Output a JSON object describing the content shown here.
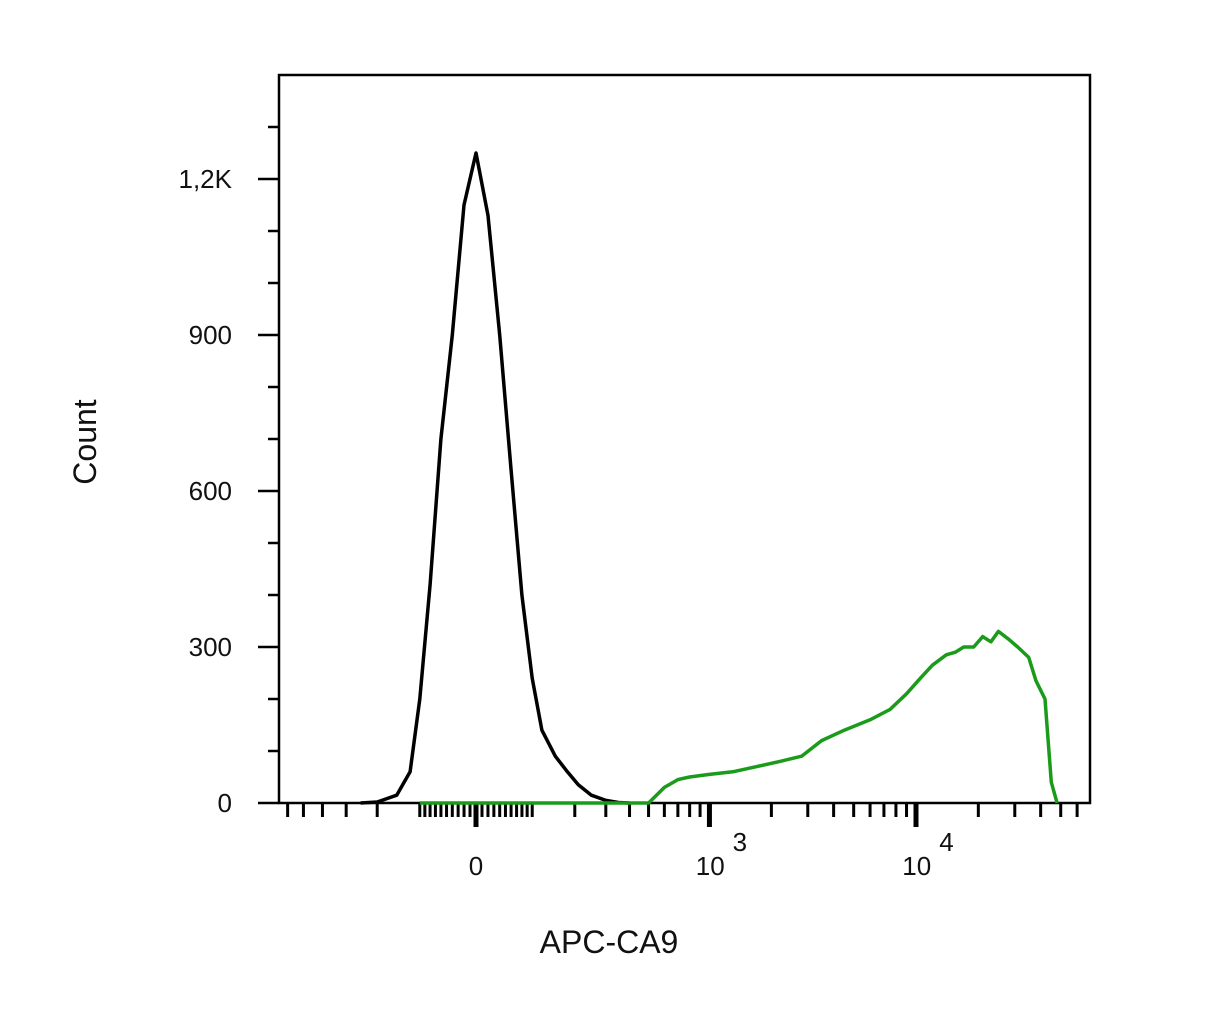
{
  "chart_data": {
    "type": "line",
    "title": "",
    "xlabel": "APC-CA9",
    "ylabel": "Count",
    "x_scale": "biexponential",
    "x_tick_labels": [
      {
        "base": "0",
        "exp": ""
      },
      {
        "base": "10",
        "exp": "3"
      },
      {
        "base": "10",
        "exp": "4"
      }
    ],
    "y_ticks": [
      0,
      300,
      600,
      900,
      1200
    ],
    "y_tick_labels": [
      "0",
      "300",
      "600",
      "900",
      "1,2K"
    ],
    "ylim": [
      0,
      1400
    ],
    "grid": false,
    "legend": "none",
    "series": [
      {
        "color": "#000000",
        "x": [
          -250,
          -200,
          -150,
          -120,
          -100,
          -80,
          -60,
          -40,
          -20,
          0,
          20,
          40,
          60,
          80,
          100,
          120,
          150,
          180,
          210,
          250,
          300,
          350,
          400
        ],
        "values": [
          0,
          2,
          15,
          60,
          200,
          420,
          700,
          900,
          1150,
          1250,
          1130,
          900,
          640,
          400,
          240,
          140,
          90,
          60,
          35,
          15,
          5,
          1,
          0
        ]
      },
      {
        "color": "#1a9b1a",
        "x": [
          -100,
          0,
          300,
          500,
          600,
          700,
          800,
          1000,
          1300,
          1700,
          2200,
          2800,
          3500,
          4500,
          6000,
          7500,
          9000,
          10500,
          12000,
          14000,
          15500,
          17000,
          19000,
          21000,
          23000,
          25000,
          28000,
          31000,
          35000,
          38000,
          42000,
          45000,
          48000
        ],
        "values": [
          0,
          0,
          0,
          0,
          30,
          45,
          50,
          55,
          60,
          70,
          80,
          90,
          120,
          140,
          160,
          180,
          210,
          240,
          265,
          285,
          290,
          300,
          300,
          320,
          310,
          330,
          315,
          300,
          280,
          235,
          200,
          40,
          0
        ]
      }
    ]
  }
}
